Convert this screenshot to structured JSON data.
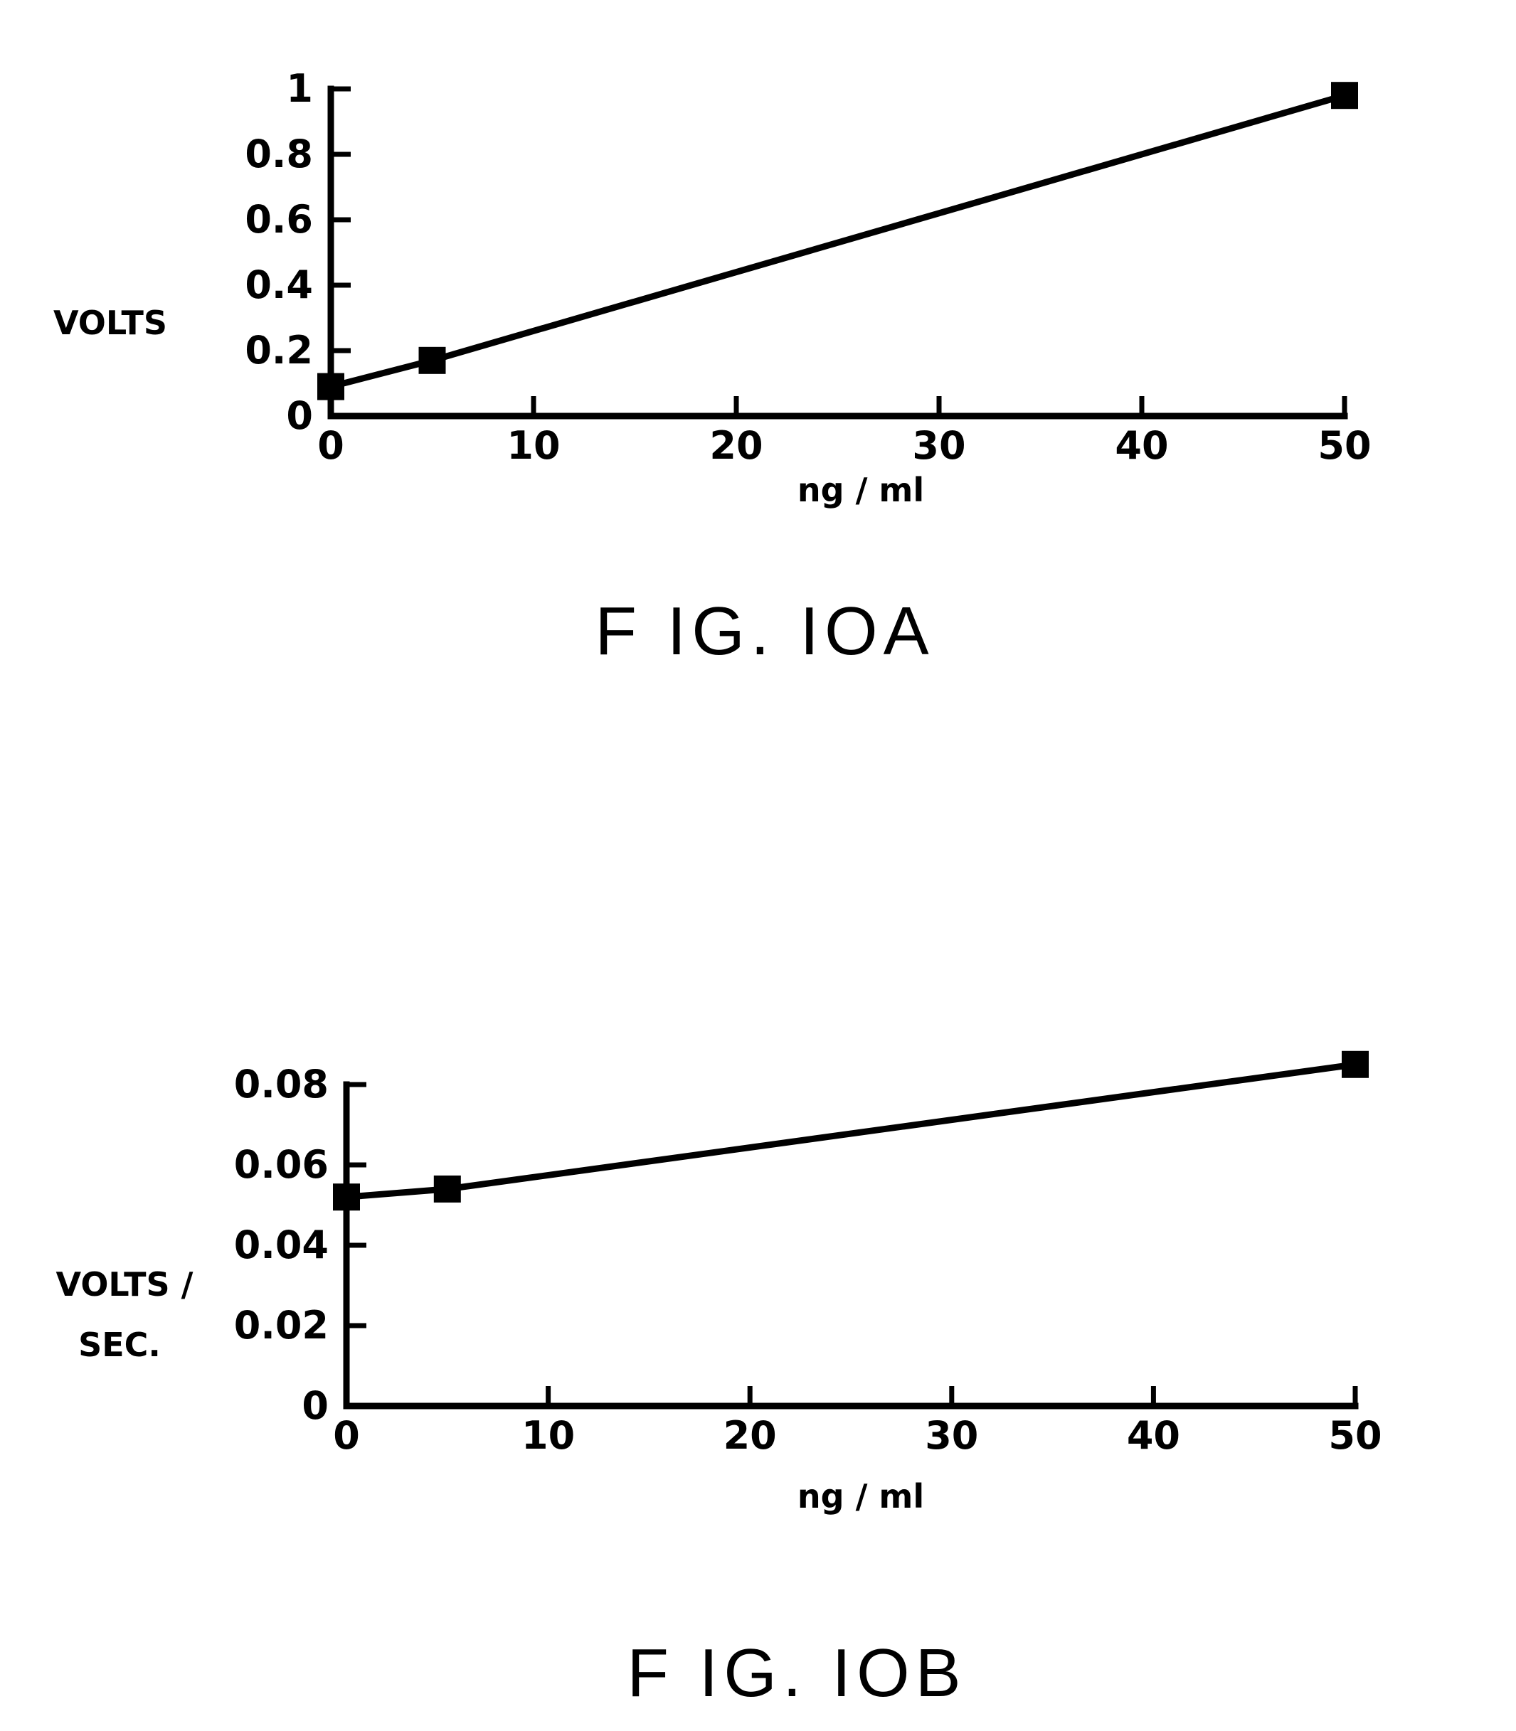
{
  "chart_data": [
    {
      "type": "line",
      "caption": "F IG. IOA",
      "xlabel": "ng / ml",
      "ylabel": "VOLTS",
      "xlim": [
        0,
        50
      ],
      "ylim": [
        0,
        1
      ],
      "x_ticks": [
        0,
        10,
        20,
        30,
        40,
        50
      ],
      "x_tick_labels": [
        "0",
        "10",
        "20",
        "30",
        "40",
        "50"
      ],
      "y_ticks": [
        0,
        0.2,
        0.4,
        0.6,
        0.8,
        1
      ],
      "y_tick_labels": [
        "0",
        "0.2",
        "0.4",
        "0.6",
        "0.8",
        "1"
      ],
      "grid": false,
      "series": [
        {
          "x": [
            0,
            5,
            50
          ],
          "y": [
            0.09,
            0.17,
            0.98
          ],
          "marker": "square",
          "color": "#000000"
        }
      ]
    },
    {
      "type": "line",
      "caption": "F IG. IOB",
      "xlabel": "ng / ml",
      "ylabel": [
        "VOLTS /",
        "SEC."
      ],
      "xlim": [
        0,
        50
      ],
      "ylim": [
        0,
        0.08
      ],
      "x_ticks": [
        0,
        10,
        20,
        30,
        40,
        50
      ],
      "x_tick_labels": [
        "0",
        "10",
        "20",
        "30",
        "40",
        "50"
      ],
      "y_ticks": [
        0,
        0.02,
        0.04,
        0.06,
        0.08
      ],
      "y_tick_labels": [
        "0",
        "0.02",
        "0.04",
        "0.06",
        "0.08"
      ],
      "grid": false,
      "series": [
        {
          "x": [
            0,
            5,
            50
          ],
          "y": [
            0.052,
            0.054,
            0.085
          ],
          "marker": "square",
          "color": "#000000"
        }
      ]
    }
  ]
}
